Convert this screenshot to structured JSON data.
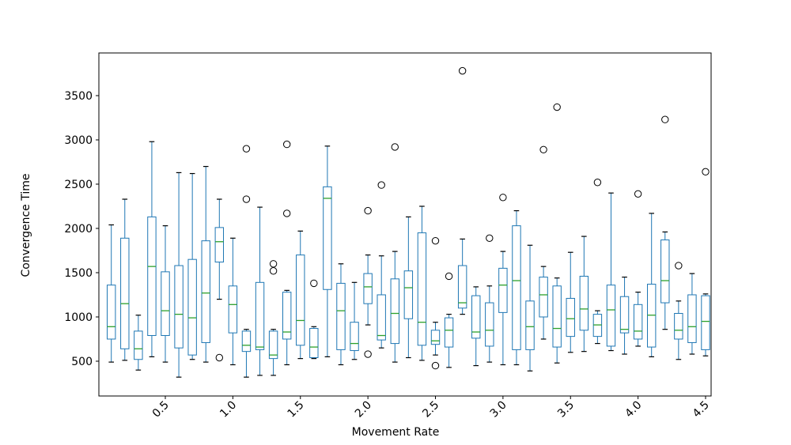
{
  "figure": {
    "background": "#ffffff"
  },
  "chart_data": {
    "type": "boxplot",
    "title": "",
    "xlabel": "Movement Rate",
    "ylabel": "Convergence Time",
    "xlim": [
      0.008,
      4.541
    ],
    "ylim": [
      107,
      3982
    ],
    "grid": false,
    "legend": "none",
    "x_ticks": [
      0.5,
      1.0,
      1.5,
      2.0,
      2.5,
      3.0,
      3.5,
      4.0,
      4.5
    ],
    "x_tick_labels": [
      "0.5",
      "1.0",
      "1.5",
      "2.0",
      "2.5",
      "3.0",
      "3.5",
      "4.0",
      "4.5"
    ],
    "x_tick_rotation_deg": 45,
    "y_ticks": [
      500,
      1000,
      1500,
      2000,
      2500,
      3000,
      3500
    ],
    "y_tick_labels": [
      "500",
      "1000",
      "1500",
      "2000",
      "2500",
      "3000",
      "3500"
    ],
    "colors": {
      "box": "#1f77b4",
      "whisker": "#1f77b4",
      "cap": "#000000",
      "median": "#2ca02c",
      "flier_edge": "#000000",
      "spine": "#000000",
      "text": "#000000"
    },
    "series": [
      {
        "x": 0.1,
        "lo": 490,
        "q1": 750,
        "med": 890,
        "q3": 1360,
        "hi": 2040,
        "fliers": []
      },
      {
        "x": 0.2,
        "lo": 510,
        "q1": 640,
        "med": 1150,
        "q3": 1890,
        "hi": 2330,
        "fliers": []
      },
      {
        "x": 0.3,
        "lo": 400,
        "q1": 520,
        "med": 640,
        "q3": 840,
        "hi": 1020,
        "fliers": []
      },
      {
        "x": 0.4,
        "lo": 550,
        "q1": 790,
        "med": 1570,
        "q3": 2130,
        "hi": 2980,
        "fliers": []
      },
      {
        "x": 0.5,
        "lo": 490,
        "q1": 790,
        "med": 1070,
        "q3": 1510,
        "hi": 2030,
        "fliers": []
      },
      {
        "x": 0.6,
        "lo": 320,
        "q1": 650,
        "med": 1030,
        "q3": 1580,
        "hi": 2630,
        "fliers": []
      },
      {
        "x": 0.7,
        "lo": 520,
        "q1": 570,
        "med": 990,
        "q3": 1650,
        "hi": 2620,
        "fliers": []
      },
      {
        "x": 0.8,
        "lo": 490,
        "q1": 710,
        "med": 1270,
        "q3": 1860,
        "hi": 2700,
        "fliers": []
      },
      {
        "x": 0.9,
        "lo": 1200,
        "q1": 1620,
        "med": 1850,
        "q3": 2010,
        "hi": 2330,
        "fliers": [
          540
        ]
      },
      {
        "x": 1.0,
        "lo": 460,
        "q1": 820,
        "med": 1140,
        "q3": 1350,
        "hi": 1890,
        "fliers": []
      },
      {
        "x": 1.1,
        "lo": 320,
        "q1": 610,
        "med": 680,
        "q3": 840,
        "hi": 860,
        "fliers": [
          2330,
          2900
        ]
      },
      {
        "x": 1.2,
        "lo": 340,
        "q1": 630,
        "med": 660,
        "q3": 1390,
        "hi": 2240,
        "fliers": []
      },
      {
        "x": 1.3,
        "lo": 340,
        "q1": 530,
        "med": 570,
        "q3": 840,
        "hi": 860,
        "fliers": [
          1520,
          1600
        ]
      },
      {
        "x": 1.4,
        "lo": 460,
        "q1": 750,
        "med": 830,
        "q3": 1280,
        "hi": 1300,
        "fliers": [
          2170,
          2950
        ]
      },
      {
        "x": 1.5,
        "lo": 530,
        "q1": 680,
        "med": 960,
        "q3": 1700,
        "hi": 1970,
        "fliers": []
      },
      {
        "x": 1.6,
        "lo": 530,
        "q1": 540,
        "med": 660,
        "q3": 870,
        "hi": 890,
        "fliers": [
          1380
        ]
      },
      {
        "x": 1.7,
        "lo": 550,
        "q1": 1310,
        "med": 2340,
        "q3": 2470,
        "hi": 2930,
        "fliers": []
      },
      {
        "x": 1.8,
        "lo": 460,
        "q1": 630,
        "med": 1070,
        "q3": 1380,
        "hi": 1600,
        "fliers": []
      },
      {
        "x": 1.9,
        "lo": 520,
        "q1": 620,
        "med": 700,
        "q3": 940,
        "hi": 1390,
        "fliers": []
      },
      {
        "x": 2.0,
        "lo": 910,
        "q1": 1150,
        "med": 1340,
        "q3": 1490,
        "hi": 1700,
        "fliers": [
          2200,
          580
        ]
      },
      {
        "x": 2.1,
        "lo": 650,
        "q1": 740,
        "med": 790,
        "q3": 1250,
        "hi": 1690,
        "fliers": [
          2490
        ]
      },
      {
        "x": 2.2,
        "lo": 490,
        "q1": 700,
        "med": 1040,
        "q3": 1430,
        "hi": 1740,
        "fliers": [
          2920
        ]
      },
      {
        "x": 2.3,
        "lo": 540,
        "q1": 980,
        "med": 1330,
        "q3": 1520,
        "hi": 2130,
        "fliers": []
      },
      {
        "x": 2.4,
        "lo": 510,
        "q1": 680,
        "med": 940,
        "q3": 1950,
        "hi": 2250,
        "fliers": []
      },
      {
        "x": 2.5,
        "lo": 570,
        "q1": 690,
        "med": 730,
        "q3": 850,
        "hi": 940,
        "fliers": [
          1860,
          450
        ]
      },
      {
        "x": 2.6,
        "lo": 430,
        "q1": 660,
        "med": 850,
        "q3": 990,
        "hi": 1030,
        "fliers": [
          1460
        ]
      },
      {
        "x": 2.7,
        "lo": 1030,
        "q1": 1100,
        "med": 1160,
        "q3": 1580,
        "hi": 1880,
        "fliers": [
          3780
        ]
      },
      {
        "x": 2.8,
        "lo": 450,
        "q1": 760,
        "med": 830,
        "q3": 1240,
        "hi": 1340,
        "fliers": []
      },
      {
        "x": 2.9,
        "lo": 490,
        "q1": 670,
        "med": 850,
        "q3": 1160,
        "hi": 1350,
        "fliers": [
          1890
        ]
      },
      {
        "x": 3.0,
        "lo": 460,
        "q1": 1050,
        "med": 1360,
        "q3": 1550,
        "hi": 1740,
        "fliers": [
          2350
        ]
      },
      {
        "x": 3.1,
        "lo": 460,
        "q1": 630,
        "med": 1410,
        "q3": 2030,
        "hi": 2200,
        "fliers": []
      },
      {
        "x": 3.2,
        "lo": 390,
        "q1": 630,
        "med": 890,
        "q3": 1180,
        "hi": 1810,
        "fliers": []
      },
      {
        "x": 3.3,
        "lo": 750,
        "q1": 1000,
        "med": 1250,
        "q3": 1450,
        "hi": 1570,
        "fliers": [
          2890
        ]
      },
      {
        "x": 3.4,
        "lo": 480,
        "q1": 660,
        "med": 870,
        "q3": 1350,
        "hi": 1440,
        "fliers": [
          3370
        ]
      },
      {
        "x": 3.5,
        "lo": 600,
        "q1": 780,
        "med": 980,
        "q3": 1210,
        "hi": 1730,
        "fliers": []
      },
      {
        "x": 3.6,
        "lo": 610,
        "q1": 850,
        "med": 1090,
        "q3": 1460,
        "hi": 1910,
        "fliers": []
      },
      {
        "x": 3.7,
        "lo": 700,
        "q1": 780,
        "med": 910,
        "q3": 1030,
        "hi": 1070,
        "fliers": [
          2520
        ]
      },
      {
        "x": 3.8,
        "lo": 620,
        "q1": 670,
        "med": 1080,
        "q3": 1360,
        "hi": 2400,
        "fliers": []
      },
      {
        "x": 3.9,
        "lo": 580,
        "q1": 820,
        "med": 860,
        "q3": 1230,
        "hi": 1450,
        "fliers": []
      },
      {
        "x": 4.0,
        "lo": 670,
        "q1": 750,
        "med": 840,
        "q3": 1140,
        "hi": 1280,
        "fliers": [
          2390
        ]
      },
      {
        "x": 4.1,
        "lo": 550,
        "q1": 660,
        "med": 1020,
        "q3": 1370,
        "hi": 2170,
        "fliers": []
      },
      {
        "x": 4.2,
        "lo": 860,
        "q1": 1160,
        "med": 1410,
        "q3": 1870,
        "hi": 1960,
        "fliers": [
          3230
        ]
      },
      {
        "x": 4.3,
        "lo": 520,
        "q1": 750,
        "med": 850,
        "q3": 1040,
        "hi": 1180,
        "fliers": [
          1580
        ]
      },
      {
        "x": 4.4,
        "lo": 580,
        "q1": 710,
        "med": 890,
        "q3": 1250,
        "hi": 1490,
        "fliers": []
      },
      {
        "x": 4.5,
        "lo": 560,
        "q1": 630,
        "med": 950,
        "q3": 1240,
        "hi": 1260,
        "fliers": [
          2640
        ]
      }
    ]
  }
}
